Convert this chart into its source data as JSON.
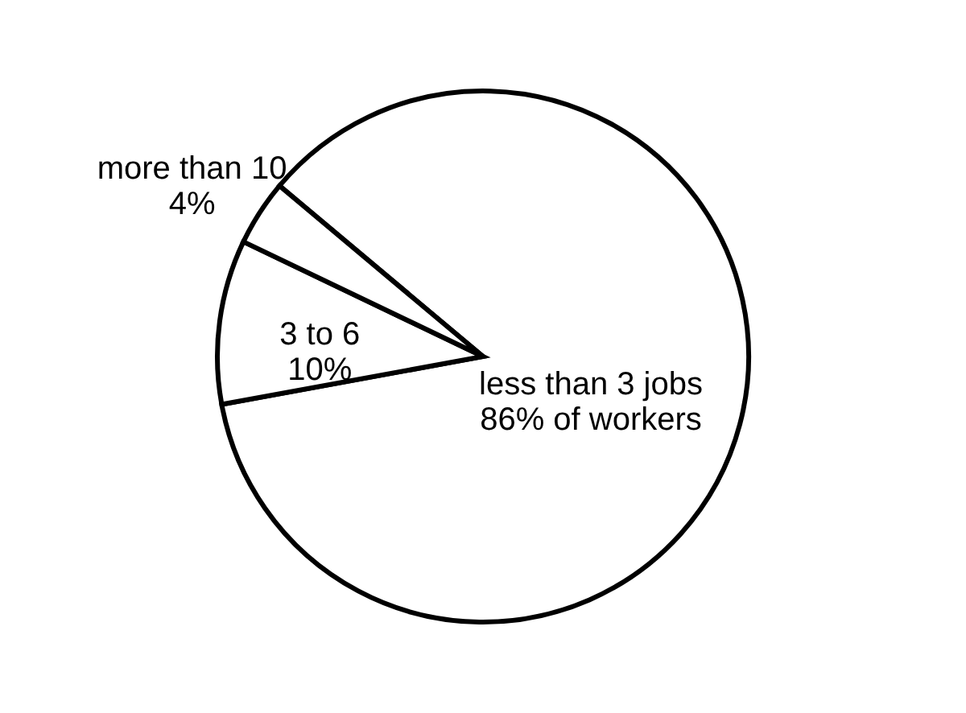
{
  "chart_data": {
    "type": "pie",
    "categories": [
      "less than 3 jobs",
      "3 to 6",
      "more than 10"
    ],
    "values": [
      86,
      10,
      4
    ],
    "value_labels": [
      "86% of workers",
      "10%",
      "4%"
    ],
    "colors": [
      "#ffffff",
      "#ffffff",
      "#ffffff"
    ]
  }
}
